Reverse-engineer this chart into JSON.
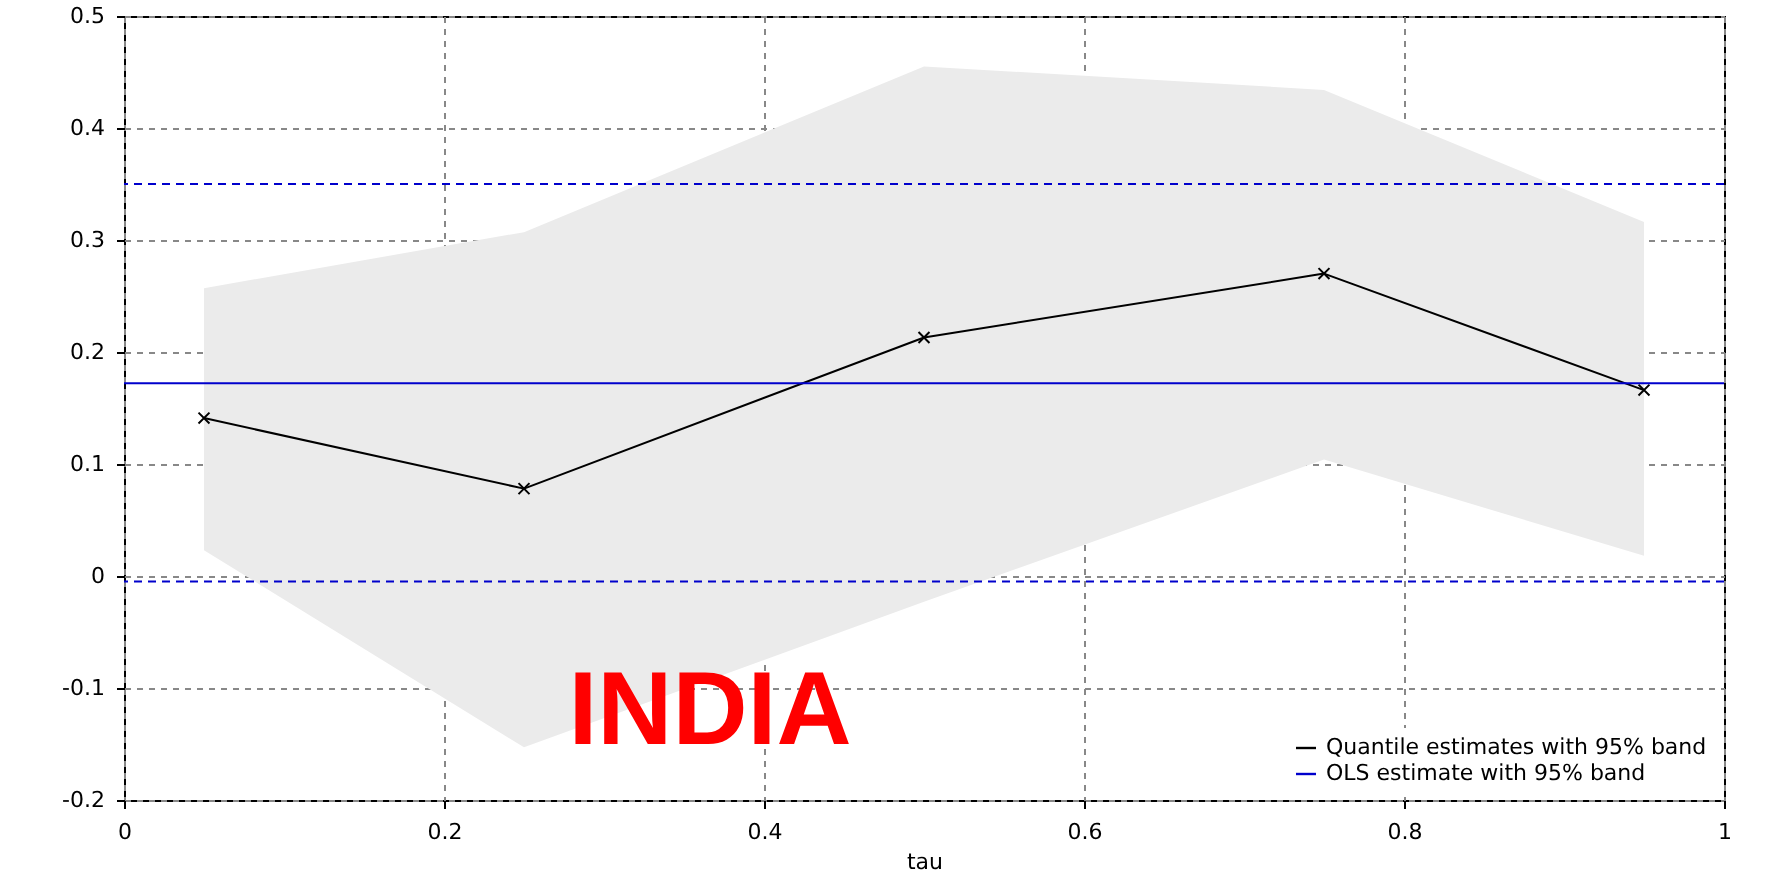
{
  "chart_data": {
    "type": "line",
    "xlabel": "tau",
    "xlim": [
      0,
      1
    ],
    "xticks": [
      0,
      0.2,
      0.4,
      0.6,
      0.8,
      1
    ],
    "ylim": [
      -0.2,
      0.5
    ],
    "yticks": [
      -0.2,
      -0.1,
      0,
      0.1,
      0.2,
      0.3,
      0.4,
      0.5
    ],
    "grid": true,
    "legend": "bottom right",
    "series": [
      {
        "name": "Quantile estimates with 95% band",
        "color": "#000000",
        "marker": "cross",
        "x": [
          0.05,
          0.25,
          0.5,
          0.75,
          0.95
        ],
        "values": [
          0.141,
          0.078,
          0.213,
          0.27,
          0.166
        ],
        "lower": [
          0.023,
          -0.153,
          -0.023,
          0.104,
          0.018
        ],
        "upper": [
          0.257,
          0.307,
          0.455,
          0.434,
          0.316
        ]
      },
      {
        "name": "OLS estimate with 95% band",
        "color": "#0000cc",
        "type": "line",
        "marker": "none",
        "x": [
          0,
          1
        ],
        "values": [
          0.172,
          0.172
        ]
      }
    ],
    "ref_lines": [
      {
        "axis": "y",
        "value": 0.35,
        "color": "#0000cc",
        "line_style": "dashed"
      },
      {
        "axis": "y",
        "value": -0.005,
        "color": "#0000cc",
        "line_style": "dashed"
      }
    ],
    "annotations": [
      "INDIA"
    ]
  }
}
